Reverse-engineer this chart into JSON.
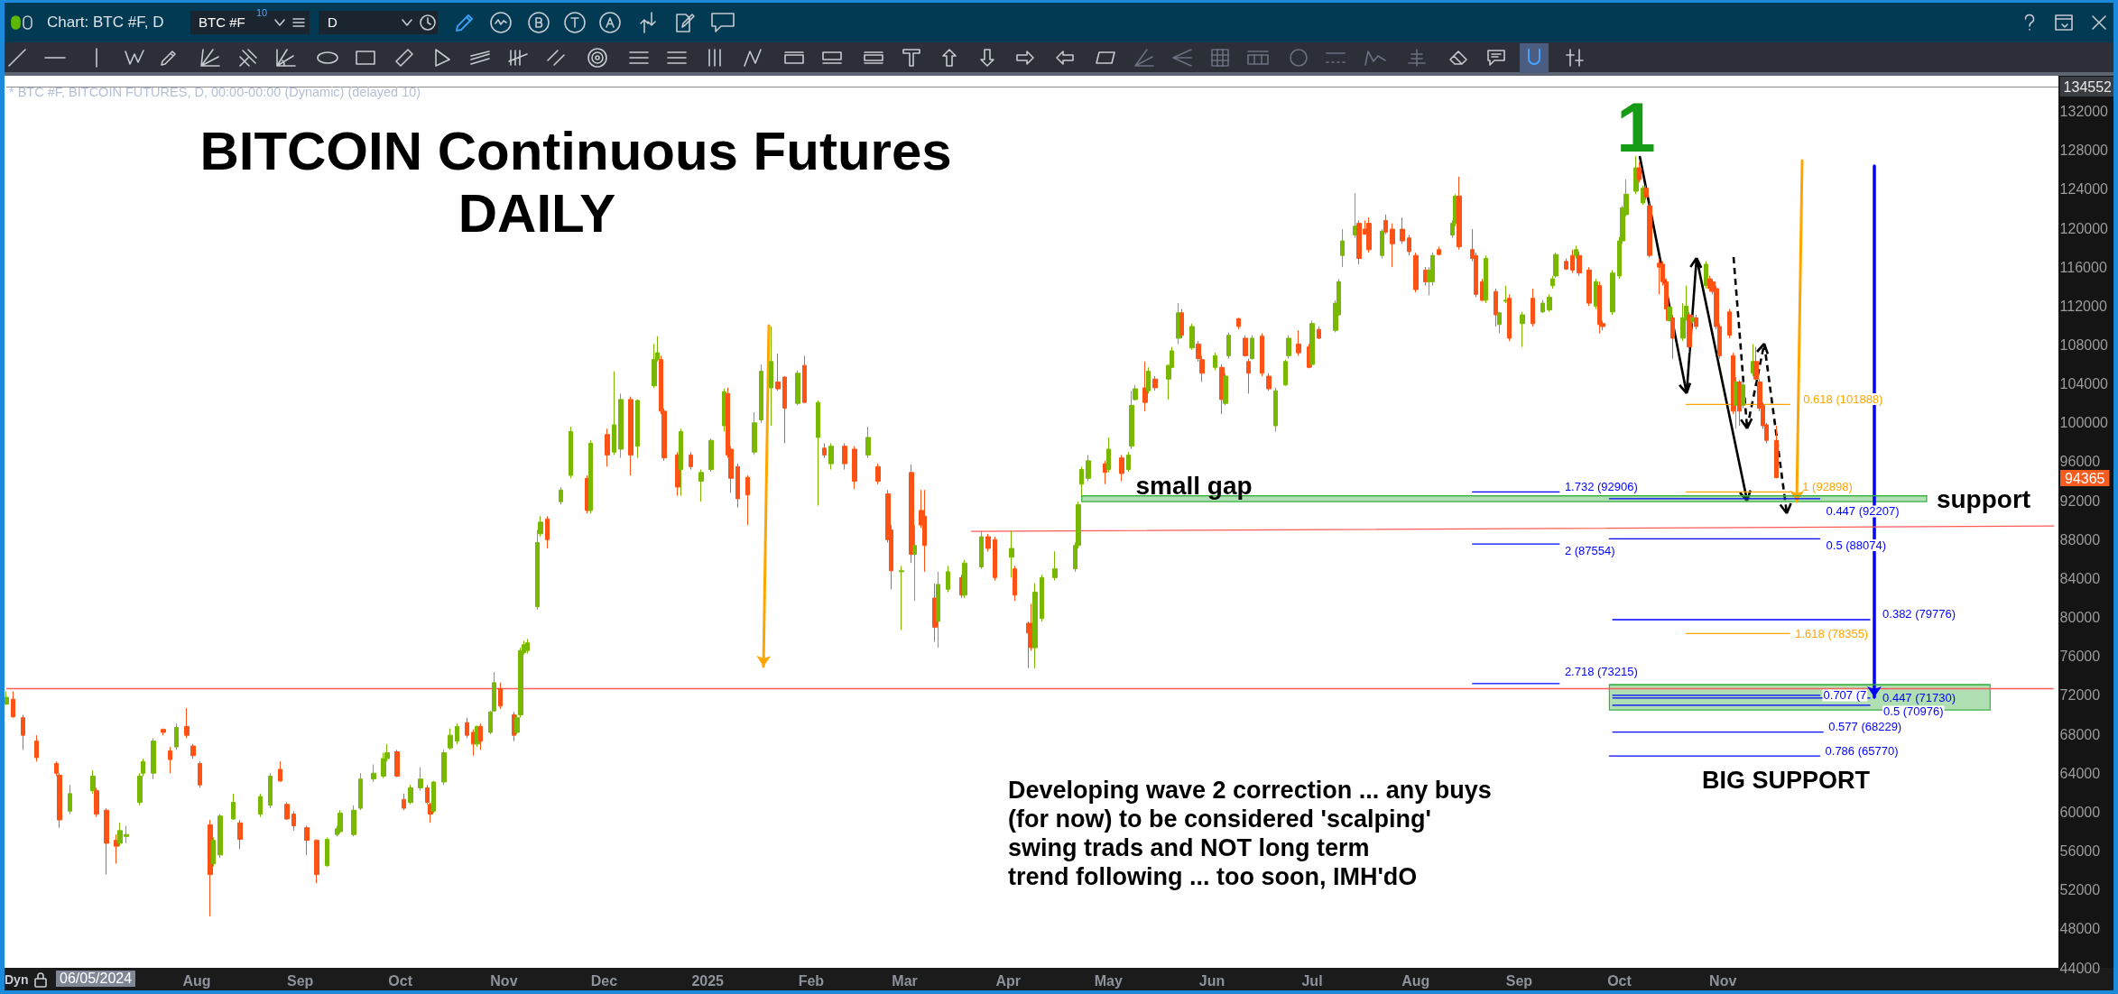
{
  "chart_data": {
    "type": "candlestick",
    "title": "BITCOIN Continuous Futures",
    "subtitle": "DAILY",
    "x": [
      "2024-06-05",
      "2024-06-07",
      "2024-06-10",
      "2024-06-14",
      "2024-06-20",
      "2024-06-21",
      "2024-06-24",
      "2024-07-01",
      "2024-07-02",
      "2024-07-05",
      "2024-07-08",
      "2024-07-09",
      "2024-07-11",
      "2024-07-15",
      "2024-07-16",
      "2024-07-19",
      "2024-07-22",
      "2024-07-24",
      "2024-07-26",
      "2024-07-29",
      "2024-07-31",
      "2024-08-02",
      "2024-08-05",
      "2024-08-06",
      "2024-08-08",
      "2024-08-12",
      "2024-08-14",
      "2024-08-20",
      "2024-08-23",
      "2024-08-26",
      "2024-08-28",
      "2024-08-30",
      "2024-09-03",
      "2024-09-06",
      "2024-09-09",
      "2024-09-12",
      "2024-09-13",
      "2024-09-17",
      "2024-09-19",
      "2024-09-23",
      "2024-09-26",
      "2024-09-27",
      "2024-09-30",
      "2024-10-02",
      "2024-10-04",
      "2024-10-07",
      "2024-10-09",
      "2024-10-10",
      "2024-10-11",
      "2024-10-14",
      "2024-10-16",
      "2024-10-18",
      "2024-10-21",
      "2024-10-23",
      "2024-10-24",
      "2024-10-25",
      "2024-10-28",
      "2024-10-29",
      "2024-10-31",
      "2024-11-04",
      "2024-11-05",
      "2024-11-06",
      "2024-11-07",
      "2024-11-08",
      "2024-11-11",
      "2024-11-12",
      "2024-11-14",
      "2024-11-18",
      "2024-11-21",
      "2024-11-26",
      "2024-11-27",
      "2024-12-02",
      "2024-12-04",
      "2024-12-06",
      "2024-12-09",
      "2024-12-11",
      "2024-12-16",
      "2024-12-17",
      "2024-12-18",
      "2024-12-19",
      "2024-12-23",
      "2024-12-24",
      "2024-12-27",
      "2024-12-30",
      "2025-01-02",
      "2025-01-06",
      "2025-01-07",
      "2025-01-08",
      "2025-01-10",
      "2025-01-13",
      "2025-01-15",
      "2025-01-17",
      "2025-01-20",
      "2025-01-22",
      "2025-01-24",
      "2025-01-28",
      "2025-01-30",
      "2025-02-03",
      "2025-02-05",
      "2025-02-07",
      "2025-02-11",
      "2025-02-14",
      "2025-02-18",
      "2025-02-21",
      "2025-02-24",
      "2025-02-25",
      "2025-02-28",
      "2025-03-03",
      "2025-03-04",
      "2025-03-06",
      "2025-03-07",
      "2025-03-10",
      "2025-03-11",
      "2025-03-14",
      "2025-03-18",
      "2025-03-19",
      "2025-03-24",
      "2025-03-26",
      "2025-03-28",
      "2025-04-02",
      "2025-04-03",
      "2025-04-07",
      "2025-04-08",
      "2025-04-09",
      "2025-04-11",
      "2025-04-15",
      "2025-04-21",
      "2025-04-22",
      "2025-04-23",
      "2025-04-25",
      "2025-04-30",
      "2025-05-01",
      "2025-05-05",
      "2025-05-07",
      "2025-05-08",
      "2025-05-09",
      "2025-05-12",
      "2025-05-13",
      "2025-05-15",
      "2025-05-19",
      "2025-05-20",
      "2025-05-22",
      "2025-05-23",
      "2025-05-26",
      "2025-05-28",
      "2025-05-29",
      "2025-06-02",
      "2025-06-04",
      "2025-06-05",
      "2025-06-06",
      "2025-06-09",
      "2025-06-11",
      "2025-06-12",
      "2025-06-13",
      "2025-06-16",
      "2025-06-18",
      "2025-06-20",
      "2025-06-23",
      "2025-06-24",
      "2025-06-27",
      "2025-06-30",
      "2025-07-01",
      "2025-07-03",
      "2025-07-08",
      "2025-07-09",
      "2025-07-10",
      "2025-07-14",
      "2025-07-15",
      "2025-07-17",
      "2025-07-18",
      "2025-07-22",
      "2025-07-23",
      "2025-07-25",
      "2025-07-28",
      "2025-07-30",
      "2025-08-01",
      "2025-08-04",
      "2025-08-05",
      "2025-08-06",
      "2025-08-08",
      "2025-08-12",
      "2025-08-13",
      "2025-08-14",
      "2025-08-18",
      "2025-08-19",
      "2025-08-21",
      "2025-08-22",
      "2025-08-25",
      "2025-08-26",
      "2025-08-28",
      "2025-08-29",
      "2025-09-02",
      "2025-09-05",
      "2025-09-08",
      "2025-09-10",
      "2025-09-11",
      "2025-09-12",
      "2025-09-15",
      "2025-09-17",
      "2025-09-18",
      "2025-09-19",
      "2025-09-22",
      "2025-09-24",
      "2025-09-25",
      "2025-09-26",
      "2025-09-29",
      "2025-10-01",
      "2025-10-02",
      "2025-10-03",
      "2025-10-06",
      "2025-10-07",
      "2025-10-08",
      "2025-10-09",
      "2025-10-10",
      "2025-10-13",
      "2025-10-14",
      "2025-10-15",
      "2025-10-16",
      "2025-10-17",
      "2025-10-20",
      "2025-10-21",
      "2025-10-22",
      "2025-10-23",
      "2025-10-24",
      "2025-10-27",
      "2025-10-28",
      "2025-10-29",
      "2025-10-30",
      "2025-10-31",
      "2025-11-03",
      "2025-11-04",
      "2025-11-05",
      "2025-11-06",
      "2025-11-07",
      "2025-11-10",
      "2025-11-11",
      "2025-11-12",
      "2025-11-13",
      "2025-11-14",
      "2025-11-17"
    ],
    "ohlc": [
      [
        71100,
        72400,
        71000,
        71800
      ],
      [
        71600,
        72400,
        69700,
        69800
      ],
      [
        69700,
        70000,
        66400,
        67900
      ],
      [
        67300,
        67900,
        65200,
        65600
      ],
      [
        65000,
        65200,
        63700,
        64000
      ],
      [
        63800,
        64000,
        58400,
        59200
      ],
      [
        60100,
        62800,
        59800,
        61900
      ],
      [
        62200,
        64300,
        61900,
        63700
      ],
      [
        62200,
        62500,
        59500,
        59800
      ],
      [
        60200,
        60400,
        53600,
        56800
      ],
      [
        57100,
        57700,
        54700,
        56500
      ],
      [
        56800,
        58900,
        56500,
        58100
      ],
      [
        57500,
        58600,
        56800,
        57700
      ],
      [
        61000,
        64000,
        60700,
        63700
      ],
      [
        64000,
        65500,
        63700,
        65200
      ],
      [
        64000,
        67600,
        63400,
        67300
      ],
      [
        68500,
        68600,
        67900,
        68200
      ],
      [
        66300,
        66700,
        64000,
        65400
      ],
      [
        66700,
        69100,
        66400,
        68700
      ],
      [
        68800,
        70700,
        67600,
        67900
      ],
      [
        66800,
        67000,
        65500,
        65800
      ],
      [
        65000,
        65200,
        62500,
        62800
      ],
      [
        58700,
        59200,
        49300,
        53600
      ],
      [
        54700,
        57400,
        54400,
        57100
      ],
      [
        55600,
        59800,
        55300,
        59600
      ],
      [
        59300,
        61900,
        59200,
        61000
      ],
      [
        58900,
        59200,
        56200,
        57200
      ],
      [
        59800,
        61900,
        59500,
        61600
      ],
      [
        60700,
        64000,
        60400,
        63700
      ],
      [
        64400,
        65200,
        63100,
        63200
      ],
      [
        60800,
        61000,
        59200,
        59300
      ],
      [
        59800,
        60100,
        58100,
        58600
      ],
      [
        58400,
        58600,
        55600,
        57100
      ],
      [
        57100,
        57200,
        52700,
        53600
      ],
      [
        54500,
        57400,
        54400,
        57200
      ],
      [
        57700,
        58600,
        57500,
        58300
      ],
      [
        58000,
        60200,
        57800,
        59900
      ],
      [
        57700,
        60700,
        57500,
        60200
      ],
      [
        60400,
        64000,
        60200,
        63400
      ],
      [
        63400,
        64900,
        63100,
        64000
      ],
      [
        63700,
        66100,
        63500,
        65500
      ],
      [
        65500,
        67000,
        65200,
        66100
      ],
      [
        66200,
        66400,
        63600,
        63700
      ],
      [
        61300,
        61900,
        60200,
        60400
      ],
      [
        61000,
        62800,
        60800,
        62500
      ],
      [
        62500,
        64600,
        62200,
        63400
      ],
      [
        62500,
        62800,
        60800,
        61000
      ],
      [
        60800,
        61000,
        58900,
        59800
      ],
      [
        60100,
        63200,
        59900,
        63100
      ],
      [
        63100,
        66400,
        62800,
        66100
      ],
      [
        66600,
        68600,
        66400,
        67900
      ],
      [
        67300,
        69100,
        67000,
        68800
      ],
      [
        69200,
        69700,
        67600,
        67900
      ],
      [
        68200,
        68500,
        65800,
        67000
      ],
      [
        67000,
        68900,
        66700,
        68800
      ],
      [
        68800,
        69100,
        66400,
        67300
      ],
      [
        68200,
        70400,
        68000,
        70300
      ],
      [
        70400,
        74400,
        70300,
        73300
      ],
      [
        72700,
        73300,
        70600,
        70900
      ],
      [
        70000,
        70300,
        67300,
        67900
      ],
      [
        68200,
        70000,
        68000,
        69700
      ],
      [
        70000,
        76900,
        69700,
        76600
      ],
      [
        76400,
        77600,
        76200,
        77200
      ],
      [
        76600,
        77800,
        76300,
        77400
      ],
      [
        81100,
        89000,
        80800,
        87700
      ],
      [
        88600,
        90400,
        88300,
        89800
      ],
      [
        90100,
        90400,
        87100,
        88000
      ],
      [
        91900,
        93400,
        91600,
        93100
      ],
      [
        94600,
        99600,
        94300,
        99100
      ],
      [
        94300,
        94600,
        90700,
        91000
      ],
      [
        91000,
        98200,
        90700,
        97900
      ],
      [
        98800,
        99400,
        95500,
        96700
      ],
      [
        97000,
        105300,
        96700,
        99800
      ],
      [
        97300,
        103000,
        96400,
        102400
      ],
      [
        102400,
        102700,
        94600,
        96700
      ],
      [
        97600,
        102400,
        96400,
        102300
      ],
      [
        103800,
        108100,
        103600,
        106500
      ],
      [
        106500,
        108900,
        106300,
        107200
      ],
      [
        106500,
        106900,
        100900,
        101200
      ],
      [
        101200,
        101500,
        96100,
        96400
      ],
      [
        96700,
        97000,
        92500,
        93400
      ],
      [
        95200,
        99400,
        92500,
        99100
      ],
      [
        96700,
        97000,
        95200,
        95500
      ],
      [
        94000,
        95200,
        91900,
        94900
      ],
      [
        95200,
        98400,
        95000,
        98200
      ],
      [
        99700,
        103500,
        99100,
        103200
      ],
      [
        103000,
        103600,
        96400,
        96700
      ],
      [
        97300,
        97600,
        92800,
        94300
      ],
      [
        95500,
        95800,
        91300,
        92200
      ],
      [
        94400,
        94600,
        89500,
        92600
      ],
      [
        97000,
        101100,
        96700,
        100000
      ],
      [
        100300,
        106000,
        100000,
        105300
      ],
      [
        103600,
        109900,
        99700,
        106300
      ],
      [
        104200,
        107100,
        103300,
        103500
      ],
      [
        104700,
        104800,
        97900,
        101500
      ],
      [
        102000,
        105400,
        101800,
        105100
      ],
      [
        105900,
        106900,
        102000,
        102100
      ],
      [
        98500,
        102300,
        91500,
        102100
      ],
      [
        97400,
        97900,
        96400,
        96700
      ],
      [
        95800,
        97900,
        95200,
        97600
      ],
      [
        97600,
        97900,
        95200,
        95800
      ],
      [
        97300,
        97600,
        93200,
        94000
      ],
      [
        96700,
        99600,
        96400,
        98500
      ],
      [
        95500,
        95800,
        93700,
        94000
      ],
      [
        92700,
        93100,
        87700,
        88000
      ],
      [
        89000,
        89500,
        82900,
        84800
      ],
      [
        84700,
        85300,
        78700,
        84800
      ],
      [
        94900,
        95700,
        85600,
        86500
      ],
      [
        86500,
        89500,
        81700,
        87400
      ],
      [
        91000,
        93100,
        89200,
        89500
      ],
      [
        90400,
        93100,
        84700,
        87400
      ],
      [
        82000,
        83500,
        77500,
        79000
      ],
      [
        79600,
        84700,
        76900,
        83400
      ],
      [
        82900,
        85300,
        82600,
        84700
      ],
      [
        84100,
        84400,
        82000,
        82300
      ],
      [
        82300,
        85900,
        82000,
        85600
      ],
      [
        85200,
        88900,
        85000,
        88300
      ],
      [
        88300,
        88600,
        86800,
        87100
      ],
      [
        88000,
        88300,
        83800,
        84100
      ],
      [
        86200,
        88900,
        84100,
        87100
      ],
      [
        85000,
        85300,
        81700,
        82300
      ],
      [
        79400,
        79600,
        74800,
        78400
      ],
      [
        79400,
        81400,
        76600,
        76900
      ],
      [
        76900,
        83500,
        74800,
        82600
      ],
      [
        79900,
        84400,
        79600,
        84100
      ],
      [
        84100,
        86800,
        83800,
        85000
      ],
      [
        85000,
        87700,
        84700,
        87400
      ],
      [
        87400,
        91900,
        87100,
        91600
      ],
      [
        93700,
        95500,
        92500,
        95200
      ],
      [
        94300,
        96700,
        94000,
        96100
      ],
      [
        95800,
        96100,
        93700,
        94900
      ],
      [
        95200,
        98500,
        94900,
        97300
      ],
      [
        96400,
        96700,
        94000,
        94800
      ],
      [
        95200,
        97000,
        95000,
        96700
      ],
      [
        97600,
        103300,
        97300,
        101800
      ],
      [
        102400,
        103900,
        102300,
        103500
      ],
      [
        103600,
        106300,
        101200,
        102100
      ],
      [
        103300,
        105700,
        103000,
        105300
      ],
      [
        104500,
        104800,
        103300,
        103600
      ],
      [
        104500,
        106000,
        102400,
        105900
      ],
      [
        105700,
        107800,
        105600,
        107400
      ],
      [
        108700,
        112300,
        108100,
        111300
      ],
      [
        111300,
        111700,
        108700,
        109000
      ],
      [
        107700,
        110200,
        107500,
        109900
      ],
      [
        108100,
        108400,
        106300,
        106600
      ],
      [
        106500,
        106900,
        104200,
        105100
      ],
      [
        105700,
        107200,
        105400,
        106900
      ],
      [
        105700,
        106000,
        100900,
        102400
      ],
      [
        102000,
        105100,
        101800,
        104800
      ],
      [
        106900,
        109300,
        106600,
        109000
      ],
      [
        110700,
        110800,
        109600,
        109900
      ],
      [
        108700,
        109000,
        106800,
        106900
      ],
      [
        106300,
        106600,
        103000,
        105100
      ],
      [
        106600,
        109000,
        106500,
        108700
      ],
      [
        108900,
        109200,
        104800,
        105100
      ],
      [
        104800,
        105100,
        103300,
        103500
      ],
      [
        99700,
        103600,
        99100,
        103300
      ],
      [
        103900,
        106500,
        103800,
        106300
      ],
      [
        106900,
        109000,
        106600,
        108700
      ],
      [
        108100,
        109500,
        106900,
        107200
      ],
      [
        107800,
        108100,
        105600,
        105700
      ],
      [
        106000,
        110500,
        105700,
        110200
      ],
      [
        109600,
        109900,
        108600,
        108700
      ],
      [
        109500,
        112600,
        109300,
        112300
      ],
      [
        111100,
        114800,
        111000,
        114500
      ],
      [
        117200,
        119900,
        116000,
        118700
      ],
      [
        119300,
        123600,
        119000,
        120200
      ],
      [
        120500,
        120800,
        116300,
        116900
      ],
      [
        119900,
        120800,
        119300,
        119400
      ],
      [
        120500,
        121100,
        117500,
        117800
      ],
      [
        117200,
        119900,
        116900,
        119700
      ],
      [
        120800,
        121400,
        119400,
        119600
      ],
      [
        119900,
        120500,
        116000,
        118400
      ],
      [
        119900,
        121100,
        118400,
        118700
      ],
      [
        119000,
        119300,
        117200,
        117600
      ],
      [
        117200,
        117500,
        113400,
        113700
      ],
      [
        115700,
        116000,
        114100,
        114500
      ],
      [
        114500,
        116000,
        113100,
        115700
      ],
      [
        114500,
        117500,
        114100,
        117200
      ],
      [
        117800,
        118100,
        117200,
        117300
      ],
      [
        119300,
        120800,
        119000,
        120500
      ],
      [
        120500,
        123500,
        120200,
        123300
      ],
      [
        123300,
        125300,
        117800,
        118100
      ],
      [
        117800,
        119900,
        116600,
        116900
      ],
      [
        117200,
        117500,
        112900,
        113200
      ],
      [
        114500,
        114800,
        112500,
        112600
      ],
      [
        112600,
        117200,
        112300,
        116900
      ],
      [
        113500,
        113800,
        109900,
        111100
      ],
      [
        110100,
        111400,
        109200,
        111300
      ],
      [
        112500,
        114100,
        112300,
        112600
      ],
      [
        112800,
        113200,
        108400,
        108700
      ],
      [
        110200,
        111400,
        107800,
        111100
      ],
      [
        112800,
        113800,
        109900,
        110200
      ],
      [
        111400,
        112600,
        111300,
        112300
      ],
      [
        111600,
        113200,
        111400,
        112900
      ],
      [
        114100,
        115100,
        113800,
        114800
      ],
      [
        115100,
        117500,
        114900,
        117300
      ],
      [
        116600,
        116900,
        115700,
        115800
      ],
      [
        117200,
        117800,
        115400,
        115700
      ],
      [
        117200,
        118200,
        116900,
        117800
      ],
      [
        117200,
        117600,
        115100,
        115400
      ],
      [
        115700,
        116000,
        112000,
        112300
      ],
      [
        112000,
        114800,
        111700,
        114500
      ],
      [
        114100,
        114500,
        109200,
        110100
      ],
      [
        110200,
        110500,
        109500,
        109900
      ],
      [
        111400,
        115700,
        111100,
        115400
      ],
      [
        115100,
        119100,
        114800,
        118700
      ],
      [
        118700,
        122300,
        118400,
        122100
      ],
      [
        121400,
        125000,
        121200,
        123500
      ],
      [
        123800,
        127400,
        123500,
        126200
      ],
      [
        126200,
        126800,
        124700,
        125000
      ],
      [
        122600,
        124400,
        122400,
        124100
      ],
      [
        124100,
        124400,
        122900,
        123200
      ],
      [
        122300,
        122600,
        117000,
        117200
      ],
      [
        116400,
        116900,
        113200,
        116000
      ],
      [
        116300,
        116600,
        114100,
        114500
      ],
      [
        114500,
        114800,
        110500,
        111700
      ],
      [
        110500,
        112000,
        110400,
        111900
      ],
      [
        110800,
        111100,
        106600,
        108700
      ],
      [
        108700,
        112300,
        108400,
        110800
      ],
      [
        110800,
        114100,
        110500,
        112000
      ],
      [
        111100,
        111400,
        107200,
        107800
      ],
      [
        110400,
        111100,
        110200,
        110800
      ],
      [
        110800,
        111100,
        109600,
        109900
      ],
      [
        114100,
        116600,
        113800,
        116300
      ],
      [
        114800,
        115100,
        113500,
        113800
      ],
      [
        114500,
        114800,
        113200,
        113500
      ],
      [
        113800,
        114100,
        109600,
        109900
      ],
      [
        109900,
        110200,
        106600,
        106900
      ],
      [
        111400,
        111700,
        108700,
        109000
      ],
      [
        106900,
        107200,
        100900,
        101200
      ],
      [
        101800,
        104700,
        99400,
        104200
      ],
      [
        104200,
        104400,
        99700,
        101200
      ],
      [
        101800,
        104200,
        101500,
        103900
      ],
      [
        105100,
        108100,
        104800,
        106300
      ],
      [
        106300,
        107800,
        104200,
        104500
      ],
      [
        104200,
        104500,
        101200,
        101500
      ],
      [
        101800,
        102100,
        99400,
        99700
      ],
      [
        99800,
        100000,
        97900,
        98200
      ],
      [
        98200,
        99700,
        94300,
        94365
      ]
    ],
    "colors": [
      "#78b800",
      "#ff5214",
      "#ff5214",
      "#ff5214",
      "#ff5214",
      "#ff5214",
      "#78b800",
      "#78b800",
      "#ff5214",
      "#ff5214",
      "#ff5214",
      "#78b800",
      "#78b800",
      "#78b800",
      "#78b800",
      "#78b800",
      "#ff5214",
      "#ff5214",
      "#78b800",
      "#ff5214",
      "#ff5214",
      "#ff5214",
      "#ff5214",
      "#78b800",
      "#78b800",
      "#78b800",
      "#ff5214",
      "#78b800",
      "#78b800",
      "#ff5214",
      "#ff5214",
      "#ff5214",
      "#ff5214",
      "#ff5214",
      "#78b800",
      "#78b800",
      "#78b800",
      "#78b800",
      "#78b800",
      "#78b800",
      "#78b800",
      "#78b800",
      "#ff5214",
      "#ff5214",
      "#78b800",
      "#78b800",
      "#ff5214",
      "#ff5214",
      "#78b800",
      "#78b800",
      "#78b800",
      "#78b800",
      "#ff5214",
      "#ff5214",
      "#78b800",
      "#ff5214",
      "#78b800",
      "#78b800",
      "#ff5214",
      "#ff5214",
      "#78b800",
      "#78b800",
      "#78b800",
      "#78b800",
      "#78b800",
      "#78b800",
      "#ff5214",
      "#78b800",
      "#78b800",
      "#ff5214",
      "#78b800",
      "#ff5214",
      "#78b800",
      "#78b800",
      "#ff5214",
      "#78b800",
      "#78b800",
      "#78b800",
      "#ff5214",
      "#ff5214",
      "#ff5214",
      "#78b800",
      "#ff5214",
      "#78b800",
      "#78b800",
      "#78b800",
      "#ff5214",
      "#ff5214",
      "#ff5214",
      "#ff5214",
      "#78b800",
      "#78b800",
      "#78b800",
      "#ff5214",
      "#ff5214",
      "#78b800",
      "#ff5214",
      "#78b800",
      "#ff5214",
      "#78b800",
      "#ff5214",
      "#ff5214",
      "#78b800",
      "#ff5214",
      "#ff5214",
      "#ff5214",
      "#78b800",
      "#ff5214",
      "#78b800",
      "#ff5214",
      "#ff5214",
      "#ff5214",
      "#78b800",
      "#78b800",
      "#ff5214",
      "#78b800",
      "#78b800",
      "#ff5214",
      "#ff5214",
      "#78b800",
      "#ff5214",
      "#ff5214",
      "#ff5214",
      "#78b800",
      "#78b800",
      "#78b800",
      "#78b800",
      "#78b800",
      "#78b800",
      "#78b800",
      "#ff5214",
      "#78b800",
      "#ff5214",
      "#78b800",
      "#78b800",
      "#78b800",
      "#ff5214",
      "#78b800",
      "#ff5214",
      "#78b800",
      "#78b800",
      "#78b800",
      "#ff5214",
      "#78b800",
      "#ff5214",
      "#ff5214",
      "#78b800",
      "#ff5214",
      "#78b800",
      "#78b800",
      "#ff5214",
      "#ff5214",
      "#ff5214",
      "#78b800",
      "#ff5214",
      "#ff5214",
      "#78b800",
      "#78b800",
      "#78b800",
      "#ff5214",
      "#ff5214",
      "#78b800",
      "#ff5214",
      "#78b800",
      "#78b800",
      "#78b800",
      "#78b800",
      "#ff5214",
      "#ff5214",
      "#ff5214",
      "#78b800",
      "#ff5214",
      "#ff5214",
      "#ff5214",
      "#ff5214",
      "#ff5214",
      "#ff5214",
      "#78b800",
      "#78b800",
      "#ff5214",
      "#78b800",
      "#78b800",
      "#ff5214",
      "#ff5214",
      "#ff5214",
      "#ff5214",
      "#78b800",
      "#ff5214",
      "#78b800",
      "#78b800",
      "#ff5214",
      "#78b800",
      "#ff5214",
      "#78b800",
      "#78b800",
      "#78b800",
      "#78b800",
      "#ff5214",
      "#ff5214",
      "#78b800",
      "#ff5214",
      "#ff5214",
      "#78b800",
      "#ff5214",
      "#ff5214",
      "#78b800",
      "#78b800",
      "#78b800",
      "#78b800",
      "#78b800",
      "#ff5214",
      "#78b800",
      "#ff5214",
      "#ff5214",
      "#ff5214",
      "#ff5214",
      "#ff5214",
      "#78b800",
      "#ff5214",
      "#78b800",
      "#78b800",
      "#ff5214",
      "#78b800",
      "#ff5214",
      "#78b800",
      "#ff5214",
      "#ff5214",
      "#ff5214",
      "#ff5214",
      "#ff5214",
      "#ff5214",
      "#78b800",
      "#ff5214",
      "#78b800",
      "#78b800",
      "#ff5214",
      "#ff5214",
      "#ff5214",
      "#ff5214",
      "#ff5214"
    ],
    "xlim": [
      "2024-06-05",
      "2026-02-08"
    ],
    "xticks": [
      {
        "value": "2024-08-01",
        "label": "Aug"
      },
      {
        "value": "2024-09-01",
        "label": "Sep"
      },
      {
        "value": "2024-10-01",
        "label": "Oct"
      },
      {
        "value": "2024-11-01",
        "label": "Nov"
      },
      {
        "value": "2024-12-01",
        "label": "Dec"
      },
      {
        "value": "2025-01-01",
        "label": "2025"
      },
      {
        "value": "2025-02-01",
        "label": "Feb"
      },
      {
        "value": "2025-03-01",
        "label": "Mar"
      },
      {
        "value": "2025-04-01",
        "label": "Apr"
      },
      {
        "value": "2025-05-01",
        "label": "May"
      },
      {
        "value": "2025-06-01",
        "label": "Jun"
      },
      {
        "value": "2025-07-01",
        "label": "Jul"
      },
      {
        "value": "2025-08-01",
        "label": "Aug"
      },
      {
        "value": "2025-09-01",
        "label": "Sep"
      },
      {
        "value": "2025-10-01",
        "label": "Oct"
      },
      {
        "value": "2025-11-01",
        "label": "Nov"
      }
    ],
    "ylim": [
      44000,
      134552
    ],
    "yticks": [
      44000,
      48000,
      52000,
      56000,
      60000,
      64000,
      68000,
      72000,
      76000,
      80000,
      84000,
      88000,
      92000,
      96000,
      100000,
      104000,
      108000,
      112000,
      116000,
      120000,
      124000,
      128000,
      132000,
      134552
    ],
    "ref_lines": [
      {
        "axis": "y",
        "value": 72700,
        "color": "#ff5a5a"
      }
    ],
    "series": [
      {
        "type": "line",
        "x": [
          "2025-04-23",
          "2026-01-01"
        ],
        "values": [
          92500,
          92500
        ],
        "lower": [
          91900,
          91900
        ],
        "upper": [
          92500,
          92500
        ],
        "color": "#3cb043"
      },
      {
        "type": "line",
        "x": [
          "2025-09-28",
          "2026-01-20"
        ],
        "values": [
          73100,
          73100
        ],
        "lower": [
          70500,
          70500
        ],
        "upper": [
          73100,
          73100
        ],
        "color": "#3cb043"
      },
      {
        "type": "line",
        "x": [
          "2025-03-21",
          "2026-02-08"
        ],
        "values": [
          88850,
          89400
        ],
        "color": "#ff5a5a"
      },
      {
        "type": "line",
        "name": "1.732 (92906)",
        "x": [
          "2025-08-18",
          "2025-09-13"
        ],
        "values": [
          92906,
          92906
        ],
        "color": "#0000ff"
      },
      {
        "type": "line",
        "name": "2 (87554)",
        "x": [
          "2025-08-18",
          "2025-09-13"
        ],
        "values": [
          87554,
          87554
        ],
        "color": "#0000ff"
      },
      {
        "type": "line",
        "name": "2.718 (73215)",
        "x": [
          "2025-08-18",
          "2025-09-13"
        ],
        "values": [
          73215,
          73215
        ],
        "color": "#0000ff"
      },
      {
        "type": "line",
        "name": "0.618 (101888)",
        "x": [
          "2025-10-21",
          "2025-11-21"
        ],
        "values": [
          101888,
          101888
        ],
        "color": "#ffa500"
      },
      {
        "type": "line",
        "name": "1 (92898)",
        "x": [
          "2025-10-21",
          "2025-11-21"
        ],
        "values": [
          92898,
          92898
        ],
        "color": "#ffa500"
      },
      {
        "type": "line",
        "name": "1.618 (78355)",
        "x": [
          "2025-10-21",
          "2025-11-21"
        ],
        "values": [
          78355,
          78355
        ],
        "color": "#ffa500"
      },
      {
        "type": "line",
        "name": "0.447 (92207)",
        "x": [
          "2025-09-28",
          "2025-11-30"
        ],
        "values": [
          92207,
          92207
        ],
        "color": "#0000ff"
      },
      {
        "type": "line",
        "name": "0.5 (88074)",
        "x": [
          "2025-09-28",
          "2025-11-30"
        ],
        "values": [
          88074,
          88074
        ],
        "color": "#0000ff"
      },
      {
        "type": "line",
        "name": "0.382 (79776)",
        "x": [
          "2025-09-29",
          "2025-12-15"
        ],
        "values": [
          79776,
          79776
        ],
        "color": "#0000ff"
      },
      {
        "type": "line",
        "name": "0.707 (7",
        "x": [
          "2025-09-29",
          "2025-11-30"
        ],
        "values": [
          72000,
          72000
        ],
        "color": "#0000ff"
      },
      {
        "type": "line",
        "name": "0.447 (71730)",
        "x": [
          "2025-09-29",
          "2025-12-15"
        ],
        "values": [
          71730,
          71730
        ],
        "color": "#0000ff"
      },
      {
        "type": "line",
        "name": "0.5 (70976)",
        "x": [
          "2025-09-29",
          "2025-12-15"
        ],
        "values": [
          70976,
          70976
        ],
        "color": "#0000ff"
      },
      {
        "type": "line",
        "name": "0.577 (68229)",
        "x": [
          "2025-09-29",
          "2025-12-01"
        ],
        "values": [
          68229,
          68229
        ],
        "color": "#0000ff"
      },
      {
        "type": "line",
        "name": "0.786 (65770)",
        "x": [
          "2025-09-28",
          "2025-11-30"
        ],
        "values": [
          65770,
          65770
        ],
        "color": "#0000ff"
      }
    ],
    "annotations": [
      {
        "text": "1",
        "x": "2025-10-06",
        "y": 127400
      },
      "small gap",
      "support",
      "BIG SUPPORT",
      "94365",
      "* BTC #F, BITCOIN FUTURES, D, 00:00-00:00 (Dynamic) (delayed 10)",
      "Developing wave 2 correction ... any buys\n(for now) to be considered 'scalping'\nswing trads and NOT long term\ntrend following ... too soon, IMH'dO",
      "Chart: BTC #F, D",
      "BTC #F",
      "10",
      "D",
      "Dyn",
      "06/05/2024"
    ]
  }
}
